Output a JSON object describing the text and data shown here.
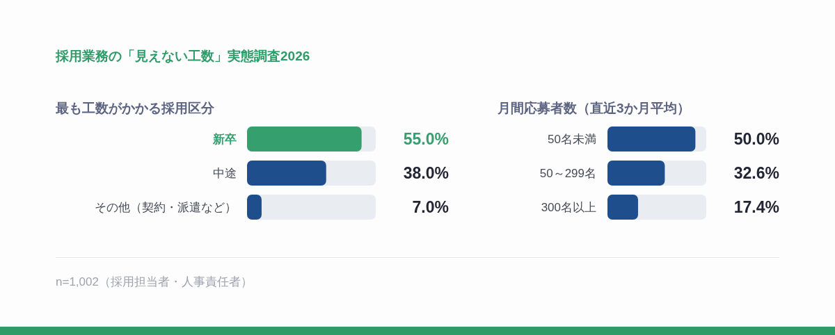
{
  "chart_data": [
    {
      "type": "other",
      "title": "採用業務の「見えない工数」実態調査2026",
      "annotations": [
        "n=1,002（採用担当者・人事責任者）"
      ]
    },
    {
      "type": "bar",
      "orientation": "horizontal",
      "title": "最も工数がかかる採用区分",
      "categories": [
        "新卒",
        "中途",
        "その他（契約・派遣など）"
      ],
      "values": [
        55,
        38,
        7
      ],
      "value_labels": [
        "55.0%",
        "38.0%",
        "7.0%"
      ],
      "color": "#1f4e8c",
      "colors": [
        "#35a06e",
        "#1f4e8c",
        "#1f4e8c"
      ]
    },
    {
      "type": "bar",
      "orientation": "horizontal",
      "title": "月間応募者数（直近3か月平均）",
      "categories": [
        "50名未満",
        "50～299名",
        "300名以上"
      ],
      "values": [
        50,
        32.6,
        17.4
      ],
      "value_labels": [
        "50.0%",
        "32.6%",
        "17.4%"
      ],
      "color": "#1f4e8c"
    }
  ]
}
